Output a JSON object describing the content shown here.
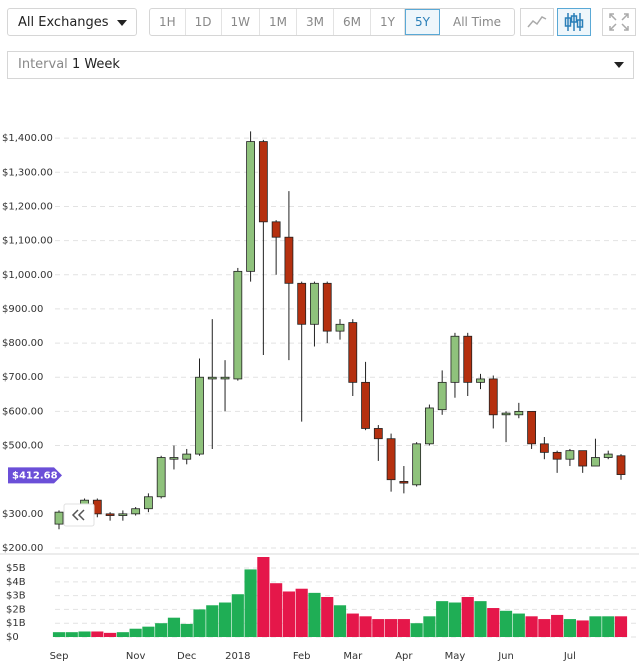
{
  "ui": {
    "exchange_select": "All Exchanges",
    "ranges": [
      "1H",
      "1D",
      "1W",
      "1M",
      "3M",
      "6M",
      "1Y",
      "5Y",
      "All Time"
    ],
    "selected_range_index": 7,
    "interval_label": "Interval",
    "interval_value": "1 Week"
  },
  "chart_data": {
    "type": "candlestick",
    "categories": [
      "Sep",
      null,
      null,
      null,
      null,
      null,
      "Nov",
      null,
      null,
      null,
      "Dec",
      null,
      null,
      null,
      "2018",
      null,
      null,
      null,
      null,
      "Feb",
      null,
      null,
      null,
      "Mar",
      null,
      null,
      null,
      "Apr",
      null,
      null,
      null,
      "May",
      null,
      null,
      null,
      "Jun",
      null,
      null,
      null,
      null,
      "Jul",
      null,
      null,
      null,
      null
    ],
    "open": [
      270,
      305,
      320,
      340,
      300,
      295,
      300,
      315,
      350,
      460,
      460,
      475,
      695,
      695,
      695,
      1010,
      1390,
      1155,
      1110,
      975,
      855,
      975,
      835,
      860,
      685,
      550,
      520,
      395,
      385,
      505,
      605,
      685,
      820,
      685,
      695,
      590,
      590,
      600,
      505,
      480,
      460,
      485,
      440,
      465,
      470
    ],
    "high": [
      310,
      320,
      345,
      345,
      305,
      310,
      320,
      360,
      470,
      500,
      490,
      755,
      870,
      750,
      1020,
      1420,
      1395,
      1160,
      1245,
      980,
      980,
      980,
      870,
      870,
      745,
      560,
      535,
      440,
      510,
      620,
      720,
      830,
      830,
      710,
      705,
      600,
      625,
      600,
      525,
      485,
      490,
      485,
      520,
      485,
      475
    ],
    "low": [
      255,
      290,
      300,
      290,
      280,
      280,
      295,
      305,
      345,
      430,
      445,
      470,
      490,
      600,
      690,
      980,
      765,
      1000,
      750,
      570,
      790,
      800,
      810,
      645,
      545,
      455,
      365,
      360,
      380,
      500,
      590,
      640,
      645,
      665,
      550,
      510,
      580,
      490,
      460,
      420,
      440,
      420,
      440,
      460,
      400
    ],
    "close": [
      305,
      310,
      340,
      300,
      295,
      300,
      315,
      350,
      465,
      465,
      475,
      700,
      700,
      700,
      1010,
      1390,
      1155,
      1110,
      975,
      855,
      975,
      835,
      855,
      685,
      550,
      520,
      400,
      390,
      505,
      610,
      685,
      820,
      685,
      695,
      590,
      595,
      600,
      505,
      480,
      460,
      485,
      440,
      465,
      475,
      415
    ],
    "volume": [
      0.35,
      0.35,
      0.4,
      0.4,
      0.3,
      0.35,
      0.6,
      0.75,
      1.0,
      1.4,
      0.95,
      2.0,
      2.3,
      2.5,
      3.1,
      4.9,
      5.8,
      3.9,
      3.3,
      3.5,
      3.2,
      2.9,
      2.3,
      1.7,
      1.5,
      1.3,
      1.3,
      1.3,
      1.0,
      1.5,
      2.6,
      2.5,
      2.9,
      2.6,
      2.1,
      1.9,
      1.7,
      1.5,
      1.3,
      1.6,
      1.3,
      1.2,
      1.5,
      1.5,
      1.5
    ],
    "up_color": "#8fc27c",
    "down_color": "#b5300f",
    "volume_up_color": "#1fae55",
    "volume_down_color": "#e5174a",
    "ylim": [
      200,
      1500
    ],
    "yticks": [
      {
        "value": 200,
        "label": "$200.00"
      },
      {
        "value": 300,
        "label": "$300.00"
      },
      {
        "value": 500,
        "label": "$500.00"
      },
      {
        "value": 600,
        "label": "$600.00"
      },
      {
        "value": 700,
        "label": "$700.00"
      },
      {
        "value": 800,
        "label": "$800.00"
      },
      {
        "value": 900,
        "label": "$900.00"
      },
      {
        "value": 1000,
        "label": "$1,000.00"
      },
      {
        "value": 1100,
        "label": "$1,100.00"
      },
      {
        "value": 1200,
        "label": "$1,200.00"
      },
      {
        "value": 1300,
        "label": "$1,300.00"
      },
      {
        "value": 1400,
        "label": "$1,400.00"
      }
    ],
    "y2lim": [
      0,
      5.8
    ],
    "y2ticks": [
      {
        "value": 0,
        "label": "$0"
      },
      {
        "value": 1,
        "label": "$1B"
      },
      {
        "value": 2,
        "label": "$2B"
      },
      {
        "value": 3,
        "label": "$3B"
      },
      {
        "value": 4,
        "label": "$4B"
      },
      {
        "value": 5,
        "label": "$5B"
      }
    ],
    "price_badge": {
      "value": 412.68,
      "label": "$412.68"
    },
    "grid": true
  }
}
